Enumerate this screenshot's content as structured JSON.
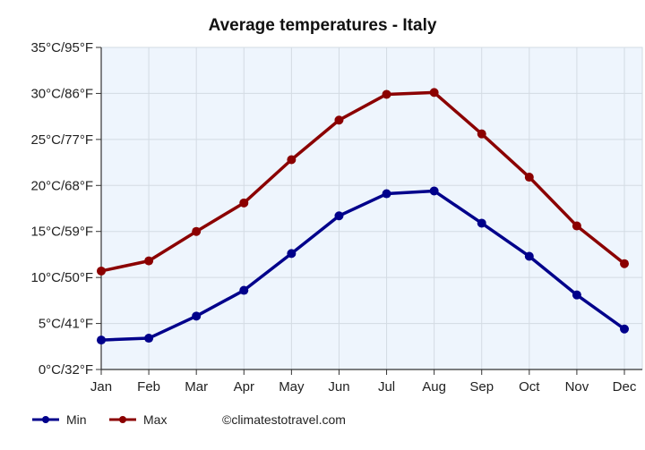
{
  "chart_data": {
    "type": "line",
    "title": "Average temperatures - Italy",
    "categories": [
      "Jan",
      "Feb",
      "Mar",
      "Apr",
      "May",
      "Jun",
      "Jul",
      "Aug",
      "Sep",
      "Oct",
      "Nov",
      "Dec"
    ],
    "y_tick_labels": [
      "0°C/32°F",
      "5°C/41°F",
      "10°C/50°F",
      "15°C/59°F",
      "20°C/68°F",
      "25°C/77°F",
      "30°C/86°F",
      "35°C/95°F"
    ],
    "ylim": [
      0,
      35
    ],
    "y_step": 5,
    "grid": true,
    "legend_position": "bottom-left",
    "series": [
      {
        "name": "Min",
        "color": "#00008b",
        "values": [
          3.2,
          3.4,
          5.8,
          8.6,
          12.6,
          16.7,
          19.1,
          19.4,
          15.9,
          12.3,
          8.1,
          4.4
        ]
      },
      {
        "name": "Max",
        "color": "#8b0000",
        "values": [
          10.7,
          11.8,
          15.0,
          18.1,
          22.8,
          27.1,
          29.9,
          30.1,
          25.6,
          20.9,
          15.6,
          11.5
        ]
      }
    ]
  },
  "credit": "©climatestotravel.com",
  "colors": {
    "plot_background": "#eef5fd",
    "grid": "#d3dbe3",
    "axis": "#333333"
  }
}
